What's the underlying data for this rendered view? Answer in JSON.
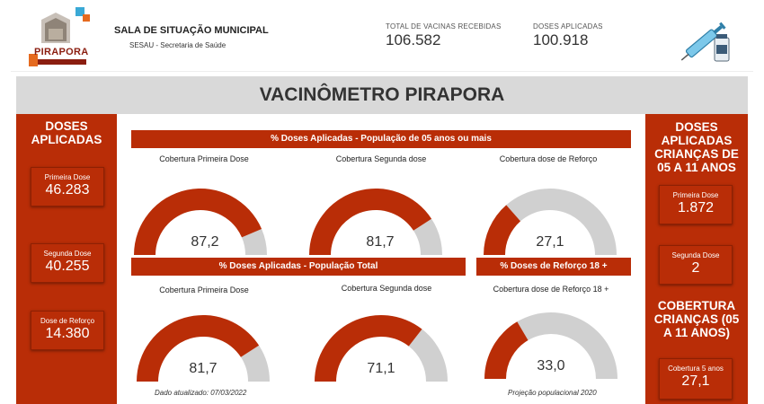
{
  "header": {
    "org_title": "SALA DE SITUAÇÃO MUNICIPAL",
    "org_subtitle": "SESAU - Secretaria de Saúde",
    "logo_text": "PIRAPORA",
    "total_received": {
      "label": "TOTAL DE VACINAS RECEBIDAS",
      "value": "106.582"
    },
    "doses_applied": {
      "label": "DOSES APLICADAS",
      "value": "100.918"
    }
  },
  "banner": {
    "title": "VACINÔMETRO PIRAPORA"
  },
  "left_panel": {
    "title": "DOSES APLICADAS",
    "cards": [
      {
        "label": "Primeira Dose",
        "value": "46.283"
      },
      {
        "label": "Segunda Dose",
        "value": "40.255"
      },
      {
        "label": "Dose de Reforço",
        "value": "14.380"
      }
    ]
  },
  "right_panel": {
    "title": "DOSES APLICADAS CRIANÇAS DE 05 A 11 ANOS",
    "cards": [
      {
        "label": "Primeira Dose",
        "value": "1.872"
      },
      {
        "label": "Segunda Dose",
        "value": "2"
      }
    ],
    "coverage_title": "COBERTURA CRIANÇAS (05 A 11 ANOS)",
    "coverage_card": {
      "label": "Cobertura 5 anos",
      "value": "27,1"
    }
  },
  "sections": {
    "pop5": "% Doses Aplicadas - População de 05 anos ou mais",
    "total": "% Doses Aplicadas - População Total",
    "booster18": "% Doses de Reforço 18 +"
  },
  "gauges": [
    {
      "label": "Cobertura Primeira Dose",
      "display": "87,2",
      "percent": 87.2
    },
    {
      "label": "Cobertura Segunda dose",
      "display": "81,7",
      "percent": 81.7
    },
    {
      "label": "Cobertura dose de Reforço",
      "display": "27,1",
      "percent": 27.1
    },
    {
      "label": "Cobertura Primeira Dose",
      "display": "81,7",
      "percent": 81.7
    },
    {
      "label": "Cobertura Segunda dose",
      "display": "71,1",
      "percent": 71.1
    },
    {
      "label": "Cobertura dose de Reforço 18 +",
      "display": "33,0",
      "percent": 33.0
    }
  ],
  "footnotes": {
    "updated": "Dado atualizado: 07/03/2022",
    "projection": "Projeção populacional 2020"
  },
  "colors": {
    "accent": "#b92d07",
    "track": "#d0d0d0"
  }
}
